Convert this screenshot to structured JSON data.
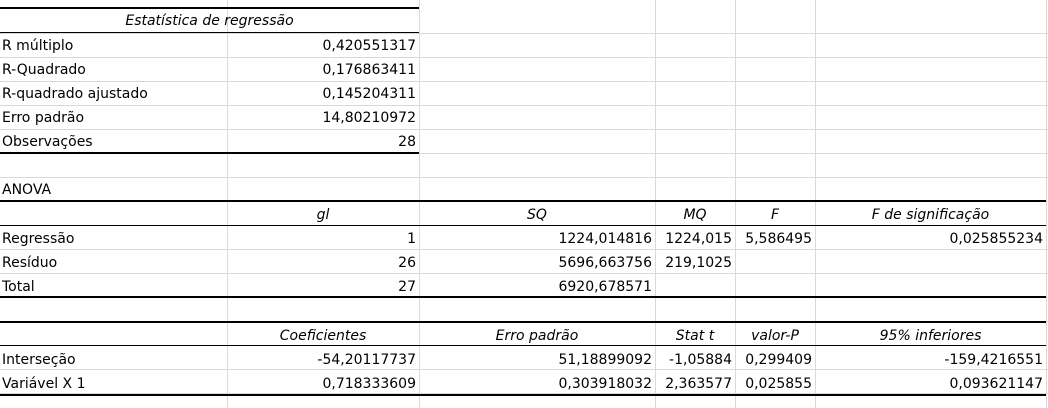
{
  "regression_stats": {
    "header": "Estatística de regressão",
    "rows": [
      {
        "label": "R múltiplo",
        "value": "0,420551317"
      },
      {
        "label": "R-Quadrado",
        "value": "0,176863411"
      },
      {
        "label": "R-quadrado ajustado",
        "value": "0,145204311"
      },
      {
        "label": "Erro padrão",
        "value": "14,80210972"
      },
      {
        "label": "Observações",
        "value": "28"
      }
    ]
  },
  "anova": {
    "title": "ANOVA",
    "headers": [
      "gl",
      "SQ",
      "MQ",
      "F",
      "F de significação"
    ],
    "rows": [
      {
        "label": "Regressão",
        "gl": "1",
        "sq": "1224,014816",
        "mq": "1224,015",
        "f": "5,586495",
        "fsig": "0,025855234"
      },
      {
        "label": "Resíduo",
        "gl": "26",
        "sq": "5696,663756",
        "mq": "219,1025",
        "f": "",
        "fsig": ""
      },
      {
        "label": "Total",
        "gl": "27",
        "sq": "6920,678571",
        "mq": "",
        "f": "",
        "fsig": ""
      }
    ]
  },
  "coefficients": {
    "headers": [
      "Coeficientes",
      "Erro padrão",
      "Stat t",
      "valor-P",
      "95% inferiores"
    ],
    "rows": [
      {
        "label": "Interseção",
        "coef": "-54,20117737",
        "se": "51,18899092",
        "t": "-1,05884",
        "p": "0,299409",
        "lower": "-159,4216551"
      },
      {
        "label": "Variável X 1",
        "coef": "0,718333609",
        "se": "0,303918032",
        "t": "2,363577",
        "p": "0,025855",
        "lower": "0,093621147"
      }
    ]
  }
}
